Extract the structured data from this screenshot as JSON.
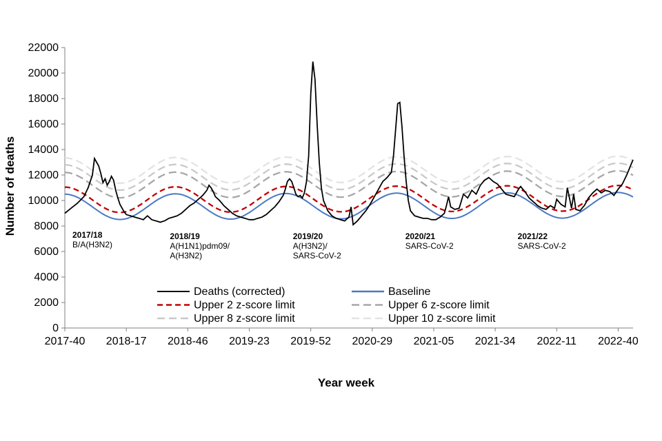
{
  "chart_data": {
    "type": "line",
    "title": "",
    "xlabel": "Year week",
    "ylabel": "Number of deaths",
    "ylim": [
      0,
      22000
    ],
    "yticks": [
      0,
      2000,
      4000,
      6000,
      8000,
      10000,
      12000,
      14000,
      16000,
      18000,
      20000,
      22000
    ],
    "x_start_week": "2017-40",
    "n_weeks": 269,
    "xtick_labels": [
      "2017-40",
      "2018-17",
      "2018-46",
      "2019-23",
      "2019-52",
      "2020-29",
      "2021-05",
      "2021-34",
      "2022-11",
      "2022-40"
    ],
    "xtick_step_weeks": 29,
    "annotations": [
      {
        "year": "2017/18",
        "virus": [
          "B/A(H3N2)"
        ],
        "week_index": 0,
        "y": 7300
      },
      {
        "year": "2018/19",
        "virus": [
          "A(H1N1)pdm09/",
          "A(H3N2)"
        ],
        "week_index": 46,
        "y": 7200
      },
      {
        "year": "2019/20",
        "virus": [
          "A(H3N2)/",
          "SARS-CoV-2"
        ],
        "week_index": 104,
        "y": 7200
      },
      {
        "year": "2020/21",
        "virus": [
          "SARS-CoV-2"
        ],
        "week_index": 157,
        "y": 7200
      },
      {
        "year": "2021/22",
        "virus": [
          "SARS-CoV-2"
        ],
        "week_index": 210,
        "y": 7200
      }
    ],
    "baseline_model": {
      "mean": 9500,
      "amplitude": 1000,
      "trough_week_index": 26,
      "period_weeks": 52.18,
      "trend_per_week": 0.5
    },
    "upper_limit_offsets": {
      "z2": 550,
      "z6": 1700,
      "z8": 2300,
      "z10": 2850
    },
    "series": [
      {
        "name": "Deaths (corrected)",
        "key": "deaths",
        "color": "#000000",
        "dash": "",
        "keypoints": [
          [
            0,
            9000
          ],
          [
            3,
            9400
          ],
          [
            6,
            9800
          ],
          [
            9,
            10300
          ],
          [
            11,
            11000
          ],
          [
            13,
            12000
          ],
          [
            14,
            13300
          ],
          [
            15,
            13000
          ],
          [
            16,
            12700
          ],
          [
            17,
            12100
          ],
          [
            18,
            11400
          ],
          [
            19,
            11700
          ],
          [
            20,
            11200
          ],
          [
            21,
            11500
          ],
          [
            22,
            11900
          ],
          [
            23,
            11600
          ],
          [
            24,
            10800
          ],
          [
            25,
            10200
          ],
          [
            26,
            9700
          ],
          [
            27,
            9400
          ],
          [
            28,
            9100
          ],
          [
            29,
            8900
          ],
          [
            31,
            8800
          ],
          [
            33,
            8700
          ],
          [
            35,
            8600
          ],
          [
            37,
            8500
          ],
          [
            39,
            8800
          ],
          [
            41,
            8500
          ],
          [
            43,
            8400
          ],
          [
            45,
            8300
          ],
          [
            47,
            8400
          ],
          [
            49,
            8600
          ],
          [
            51,
            8700
          ],
          [
            53,
            8800
          ],
          [
            55,
            9000
          ],
          [
            57,
            9300
          ],
          [
            59,
            9600
          ],
          [
            61,
            9800
          ],
          [
            63,
            10100
          ],
          [
            65,
            10400
          ],
          [
            67,
            10800
          ],
          [
            68,
            11200
          ],
          [
            69,
            11000
          ],
          [
            70,
            10700
          ],
          [
            71,
            10300
          ],
          [
            73,
            10000
          ],
          [
            75,
            9600
          ],
          [
            77,
            9300
          ],
          [
            79,
            9000
          ],
          [
            81,
            8800
          ],
          [
            83,
            8700
          ],
          [
            85,
            8600
          ],
          [
            87,
            8500
          ],
          [
            89,
            8500
          ],
          [
            91,
            8600
          ],
          [
            93,
            8700
          ],
          [
            95,
            8900
          ],
          [
            97,
            9200
          ],
          [
            99,
            9500
          ],
          [
            101,
            9900
          ],
          [
            103,
            10400
          ],
          [
            104,
            10900
          ],
          [
            105,
            11500
          ],
          [
            106,
            11700
          ],
          [
            107,
            11500
          ],
          [
            108,
            11000
          ],
          [
            109,
            10500
          ],
          [
            110,
            10300
          ],
          [
            111,
            10400
          ],
          [
            112,
            10200
          ],
          [
            113,
            10600
          ],
          [
            114,
            11500
          ],
          [
            115,
            13500
          ],
          [
            116,
            18400
          ],
          [
            117,
            20900
          ],
          [
            118,
            19500
          ],
          [
            119,
            16000
          ],
          [
            120,
            13000
          ],
          [
            121,
            11000
          ],
          [
            122,
            10000
          ],
          [
            124,
            9200
          ],
          [
            126,
            8800
          ],
          [
            128,
            8600
          ],
          [
            130,
            8500
          ],
          [
            132,
            8400
          ],
          [
            134,
            8700
          ],
          [
            135,
            9500
          ],
          [
            136,
            8100
          ],
          [
            138,
            8400
          ],
          [
            140,
            8800
          ],
          [
            142,
            9200
          ],
          [
            144,
            9700
          ],
          [
            146,
            10300
          ],
          [
            148,
            10900
          ],
          [
            150,
            11500
          ],
          [
            152,
            11800
          ],
          [
            154,
            12200
          ],
          [
            155,
            13500
          ],
          [
            156,
            15500
          ],
          [
            157,
            17600
          ],
          [
            158,
            17700
          ],
          [
            159,
            15800
          ],
          [
            160,
            13500
          ],
          [
            161,
            11500
          ],
          [
            162,
            10000
          ],
          [
            163,
            9200
          ],
          [
            165,
            8800
          ],
          [
            167,
            8700
          ],
          [
            169,
            8600
          ],
          [
            171,
            8600
          ],
          [
            173,
            8500
          ],
          [
            175,
            8500
          ],
          [
            177,
            8700
          ],
          [
            179,
            9000
          ],
          [
            180,
            9600
          ],
          [
            181,
            10300
          ],
          [
            182,
            9500
          ],
          [
            184,
            9300
          ],
          [
            186,
            9400
          ],
          [
            188,
            10500
          ],
          [
            190,
            10200
          ],
          [
            192,
            10800
          ],
          [
            194,
            10500
          ],
          [
            196,
            11200
          ],
          [
            198,
            11600
          ],
          [
            200,
            11800
          ],
          [
            202,
            11500
          ],
          [
            204,
            11300
          ],
          [
            206,
            10900
          ],
          [
            208,
            10500
          ],
          [
            210,
            10400
          ],
          [
            212,
            10300
          ],
          [
            214,
            10900
          ],
          [
            215,
            11100
          ],
          [
            217,
            10700
          ],
          [
            219,
            10200
          ],
          [
            221,
            9900
          ],
          [
            223,
            9600
          ],
          [
            225,
            9400
          ],
          [
            227,
            9300
          ],
          [
            229,
            9600
          ],
          [
            231,
            9400
          ],
          [
            232,
            10100
          ],
          [
            234,
            9700
          ],
          [
            236,
            9500
          ],
          [
            237,
            11000
          ],
          [
            238,
            10200
          ],
          [
            239,
            9400
          ],
          [
            240,
            10500
          ],
          [
            241,
            9300
          ],
          [
            243,
            9200
          ],
          [
            245,
            9600
          ],
          [
            247,
            10200
          ],
          [
            249,
            10600
          ],
          [
            251,
            10900
          ],
          [
            253,
            10600
          ],
          [
            255,
            10800
          ],
          [
            257,
            10700
          ],
          [
            259,
            10400
          ],
          [
            261,
            10900
          ],
          [
            263,
            11300
          ],
          [
            265,
            12000
          ],
          [
            268,
            13200
          ]
        ]
      },
      {
        "name": "Baseline",
        "key": "baseline",
        "color": "#4a78c2",
        "dash": ""
      },
      {
        "name": "Upper 2 z-score limit",
        "key": "z2",
        "color": "#c00000",
        "dash": "8 5"
      },
      {
        "name": "Upper 6 z-score limit",
        "key": "z6",
        "color": "#a6a6a6",
        "dash": "11 6"
      },
      {
        "name": "Upper 8 z-score limit",
        "key": "z8",
        "color": "#c9c9c9",
        "dash": "11 6"
      },
      {
        "name": "Upper 10 z-score limit",
        "key": "z10",
        "color": "#e3e3e3",
        "dash": "11 6"
      }
    ],
    "legend_position": "bottom-inside"
  }
}
